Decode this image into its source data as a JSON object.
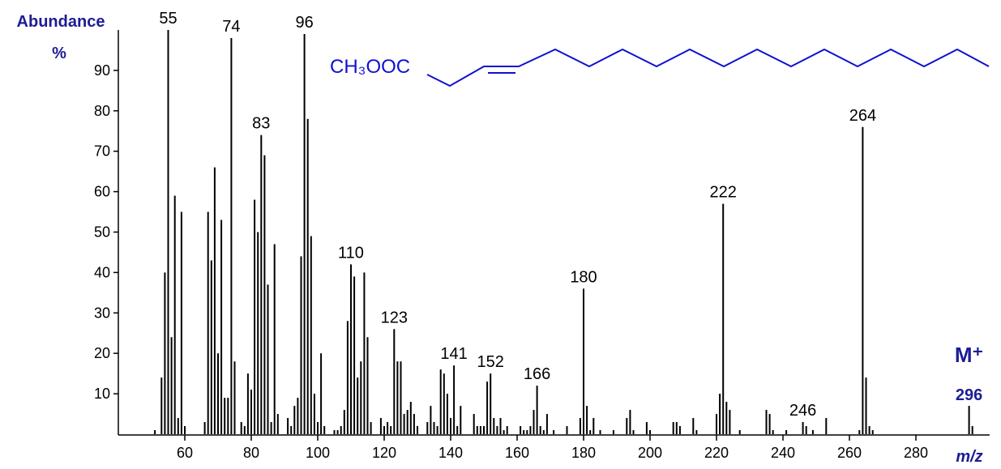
{
  "chart_data": {
    "type": "bar",
    "y_label": "Abundance",
    "y_unit": "%",
    "x_label": "m/z",
    "structure_label": "CH₃OOC",
    "molecular_ion": {
      "label": "M⁺",
      "mz": 296
    },
    "color": "#000000",
    "x": [
      51,
      53,
      54,
      55,
      56,
      57,
      58,
      59,
      60,
      66,
      67,
      68,
      69,
      70,
      71,
      72,
      73,
      74,
      75,
      77,
      78,
      79,
      80,
      81,
      82,
      83,
      84,
      85,
      86,
      87,
      88,
      91,
      92,
      93,
      94,
      95,
      96,
      97,
      98,
      99,
      100,
      101,
      102,
      105,
      106,
      107,
      108,
      109,
      110,
      111,
      112,
      113,
      114,
      115,
      116,
      119,
      120,
      121,
      122,
      123,
      124,
      125,
      126,
      127,
      128,
      129,
      130,
      133,
      134,
      135,
      136,
      137,
      138,
      139,
      140,
      141,
      142,
      143,
      147,
      148,
      149,
      150,
      151,
      152,
      153,
      154,
      155,
      156,
      157,
      161,
      162,
      163,
      164,
      165,
      166,
      167,
      168,
      169,
      171,
      175,
      179,
      180,
      181,
      182,
      183,
      185,
      189,
      193,
      194,
      195,
      199,
      200,
      207,
      208,
      209,
      213,
      214,
      220,
      221,
      222,
      223,
      224,
      227,
      235,
      236,
      237,
      241,
      246,
      247,
      249,
      253,
      263,
      264,
      265,
      266,
      267,
      296,
      297
    ],
    "values": [
      1,
      14,
      40,
      100,
      24,
      59,
      4,
      55,
      2,
      3,
      55,
      43,
      66,
      20,
      53,
      9,
      9,
      98,
      18,
      3,
      2,
      15,
      11,
      58,
      50,
      74,
      69,
      37,
      3,
      47,
      5,
      4,
      2,
      7,
      9,
      44,
      99,
      78,
      49,
      10,
      3,
      20,
      2,
      1,
      1,
      2,
      6,
      28,
      42,
      39,
      14,
      18,
      40,
      24,
      3,
      4,
      2,
      3,
      2,
      26,
      18,
      18,
      5,
      6,
      8,
      5,
      2,
      3,
      7,
      3,
      2,
      16,
      15,
      10,
      4,
      17,
      2,
      7,
      5,
      2,
      2,
      2,
      13,
      15,
      4,
      2,
      4,
      1,
      2,
      2,
      1,
      1,
      2,
      6,
      12,
      2,
      1,
      5,
      1,
      2,
      4,
      36,
      7,
      1,
      4,
      1,
      1,
      4,
      6,
      1,
      3,
      1,
      3,
      3,
      2,
      4,
      1,
      5,
      10,
      57,
      8,
      6,
      1,
      6,
      5,
      1,
      1,
      3,
      2,
      1,
      4,
      1,
      76,
      14,
      2,
      1,
      7,
      2
    ],
    "peak_labels": [
      55,
      74,
      83,
      96,
      110,
      123,
      141,
      152,
      166,
      180,
      222,
      246,
      264
    ],
    "xlim": [
      40,
      302
    ],
    "xticks": [
      60,
      80,
      100,
      120,
      140,
      160,
      180,
      200,
      220,
      240,
      260,
      280
    ],
    "ylim": [
      0,
      100
    ],
    "yticks": [
      10,
      20,
      30,
      40,
      50,
      60,
      70,
      80,
      90
    ]
  }
}
